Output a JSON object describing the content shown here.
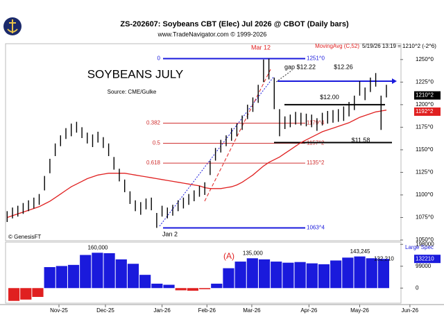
{
  "chart_data": {
    "type": "ohlc",
    "title": "ZS-202607:  Soybeans CBT (Elec) Jul 2026 @ CBOT  (Daily bars)",
    "subtitle": "www.TradeNavigator.com © 1999-2026",
    "chart_label": "SOYBEANS JULY",
    "source": "Source: CME/Gulke",
    "copyright": "© GenesisFT",
    "status": "5/19/26 13:19 = 1210^2 (-2^6)",
    "high": [
      1082,
      1086,
      1088,
      1091,
      1094,
      1097,
      1101,
      1121,
      1140,
      1157,
      1166,
      1174,
      1179,
      1181,
      1175,
      1169,
      1167,
      1170,
      1164,
      1157,
      1142,
      1129,
      1117,
      1104,
      1094,
      1092,
      1096,
      1097,
      1080,
      1088,
      1086,
      1089,
      1094,
      1097,
      1101,
      1105,
      1110,
      1114,
      1138,
      1152,
      1161,
      1166,
      1174,
      1179,
      1188,
      1200,
      1208,
      1222,
      1250,
      1251,
      1230,
      1195,
      1187,
      1189,
      1192,
      1191,
      1190,
      1189,
      1185,
      1191,
      1193,
      1194,
      1195,
      1198,
      1203,
      1210,
      1226,
      1219,
      1230,
      1235,
      1210,
      1222
    ],
    "low": [
      1070,
      1074,
      1076,
      1079,
      1082,
      1085,
      1089,
      1105,
      1124,
      1143,
      1154,
      1162,
      1165,
      1169,
      1163,
      1157,
      1153,
      1158,
      1152,
      1143,
      1128,
      1115,
      1103,
      1090,
      1082,
      1078,
      1084,
      1083,
      1063.5,
      1076,
      1074,
      1077,
      1082,
      1085,
      1089,
      1093,
      1098,
      1100,
      1122,
      1138,
      1147,
      1154,
      1160,
      1165,
      1172,
      1184,
      1192,
      1202,
      1225,
      1228,
      1195,
      1165,
      1173,
      1175,
      1178,
      1177,
      1176,
      1175,
      1171,
      1177,
      1179,
      1180,
      1181,
      1182,
      1187,
      1194,
      1210,
      1205,
      1214,
      1220,
      1172,
      1208
    ],
    "moving_average": {
      "name": "MovingAvg (C,52)",
      "color": "#e02020",
      "values": [
        1075,
        1077,
        1079,
        1081,
        1083,
        1085,
        1087,
        1090,
        1093,
        1097,
        1101,
        1105,
        1109,
        1112,
        1115,
        1118,
        1120,
        1122,
        1123,
        1124,
        1124,
        1124,
        1124,
        1123,
        1122,
        1121,
        1120,
        1119,
        1118,
        1117,
        1116,
        1115,
        1114,
        1113,
        1112,
        1111,
        1110,
        1108,
        1107,
        1107,
        1107,
        1108,
        1109,
        1111,
        1114,
        1118,
        1122,
        1127,
        1132,
        1136,
        1139,
        1142,
        1146,
        1150,
        1154,
        1158,
        1161,
        1164,
        1167,
        1170,
        1172,
        1174,
        1176,
        1178,
        1180,
        1183,
        1186,
        1188,
        1190,
        1192,
        1193,
        1194
      ]
    },
    "last_price": {
      "value": 1210.25,
      "label": "1210^2"
    },
    "ma_last": {
      "value": 1192.25,
      "label": "1192^2"
    },
    "fib_levels": [
      {
        "ratio": "0",
        "value": 1251,
        "value_label": "1251^0",
        "color": "#1a1adc"
      },
      {
        "ratio": "0.382",
        "value": 1179.5,
        "value_label": "1179^4",
        "color": "#d03030"
      },
      {
        "ratio": "0.5",
        "value": 1157.25,
        "value_label": "1157^2",
        "color": "#d03030"
      },
      {
        "ratio": "0.618",
        "value": 1135.25,
        "value_label": "1135^2",
        "color": "#d03030"
      }
    ],
    "low_level": {
      "value": 1063.5,
      "value_label": "1063^4",
      "color": "#1a1adc"
    },
    "trend_levels": [
      {
        "label": "$12.26",
        "value": 1226,
        "color": "#1a1adc"
      },
      {
        "label": "$12.00",
        "value": 1200,
        "color": "#000000"
      },
      {
        "label": "$11.58",
        "value": 1158,
        "color": "#000000"
      }
    ],
    "annotations": {
      "high_date": "Mar 12",
      "low_date": "Jan 2",
      "gap": "gap $12.22",
      "event": "(A)"
    },
    "ylim": [
      1050,
      1266
    ],
    "yticks": [
      {
        "value": 1050,
        "label": "1050^0"
      },
      {
        "value": 1075,
        "label": "1075^0"
      },
      {
        "value": 1100,
        "label": "1100^0"
      },
      {
        "value": 1125,
        "label": "1125^0"
      },
      {
        "value": 1150,
        "label": "1150^0"
      },
      {
        "value": 1175,
        "label": "1175^0"
      },
      {
        "value": 1200,
        "label": "1200^0"
      },
      {
        "value": 1225,
        "label": "1225^0"
      },
      {
        "value": 1250,
        "label": "1250^0"
      }
    ],
    "xlim": [
      -0.3,
      73.6
    ],
    "xticks": [
      {
        "value": 9.7,
        "label": "Nov-25"
      },
      {
        "value": 18.4,
        "label": "Dec-25"
      },
      {
        "value": 29,
        "label": "Jan-26"
      },
      {
        "value": 37.4,
        "label": "Feb-26"
      },
      {
        "value": 45.8,
        "label": "Mar-26"
      },
      {
        "value": 56.5,
        "label": "Apr-26"
      },
      {
        "value": 66,
        "label": "May-26"
      },
      {
        "value": 75.4,
        "label": "Jun-26"
      }
    ],
    "large_spec": {
      "name": "Large Spec",
      "pos_color": "#1a1adc",
      "neg_color": "#e02020",
      "values": [
        -58000,
        -52000,
        -40000,
        95000,
        100000,
        105000,
        150000,
        160000,
        158000,
        130000,
        110000,
        60000,
        20000,
        15000,
        -10000,
        -12000,
        -5000,
        20000,
        90000,
        120000,
        135000,
        130000,
        120000,
        115000,
        118000,
        112000,
        108000,
        125000,
        138000,
        143245,
        135000,
        132210
      ],
      "value_labels": [
        {
          "index": 7,
          "label": "160,000"
        },
        {
          "index": 20,
          "label": "135,000"
        },
        {
          "index": 29,
          "label": "143,245"
        },
        {
          "index": 31,
          "label": "132,210"
        }
      ],
      "last": {
        "value": 132210,
        "label": "132210"
      },
      "ylim": [
        -62000,
        205000
      ],
      "yticks": [
        0,
        99000,
        198000
      ]
    }
  }
}
